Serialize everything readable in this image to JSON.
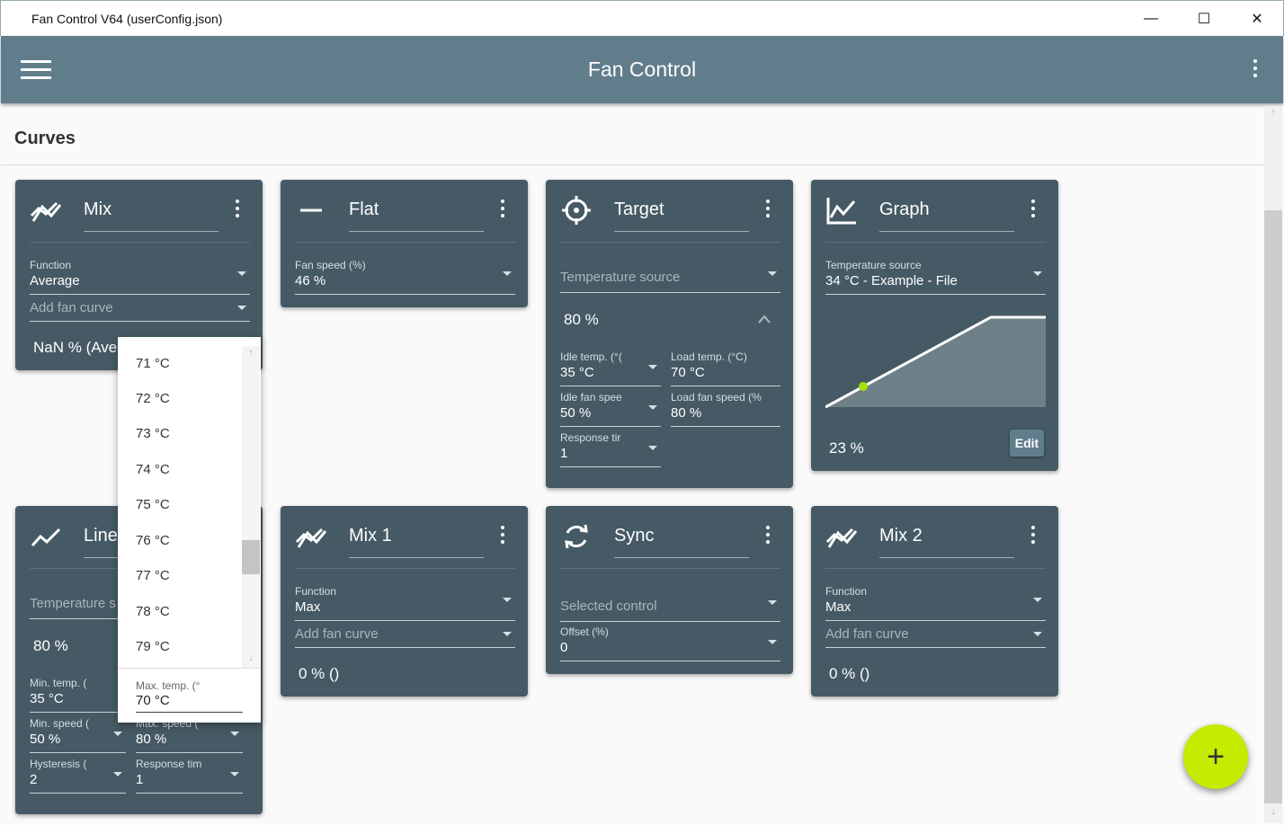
{
  "window": {
    "title": "Fan Control V64 (userConfig.json)",
    "minimize": "—",
    "maximize": "☐",
    "close": "✕"
  },
  "appbar": {
    "title": "Fan Control"
  },
  "section": {
    "title": "Curves"
  },
  "fab": {
    "label": "+"
  },
  "cards": {
    "mix": {
      "name": "Mix",
      "function_label": "Function",
      "function_value": "Average",
      "add_fan_curve": "Add fan curve",
      "output": "NaN % (Aver"
    },
    "flat": {
      "name": "Flat",
      "fan_speed_label": "Fan speed (%)",
      "fan_speed_value": "46 %"
    },
    "target": {
      "name": "Target",
      "temp_source": "Temperature source",
      "output": "80 %",
      "idle_temp_label": "Idle temp. (°(",
      "idle_temp_value": "35 °C",
      "load_temp_label": "Load temp. (°C)",
      "load_temp_value": "70 °C",
      "idle_fan_label": "Idle fan spee",
      "idle_fan_value": "50 %",
      "load_fan_label": "Load fan speed (%",
      "load_fan_value": "80 %",
      "response_label": "Response tir",
      "response_value": "1"
    },
    "graph": {
      "name": "Graph",
      "temp_source_label": "Temperature source",
      "temp_source_value": "34 °C - Example - File",
      "output": "23 %",
      "edit": "Edit"
    },
    "linear": {
      "name": "Line",
      "temp_source": "Temperature s",
      "output": "80 %",
      "min_temp_label": "Min. temp. (",
      "min_temp_value": "35 °C",
      "min_speed_label": "Min. speed (",
      "min_speed_value": "50 %",
      "max_speed_label": "Max. speed (",
      "max_speed_value": "80 %",
      "hysteresis_label": "Hysteresis (",
      "hysteresis_value": "2",
      "response_label": "Response tim",
      "response_value": "1"
    },
    "mix1": {
      "name": "Mix 1",
      "function_label": "Function",
      "function_value": "Max",
      "add_fan_curve": "Add fan curve",
      "output": "0 % ()"
    },
    "sync": {
      "name": "Sync",
      "selected_control": "Selected control",
      "offset_label": "Offset (%)",
      "offset_value": "0"
    },
    "mix2": {
      "name": "Mix 2",
      "function_label": "Function",
      "function_value": "Max",
      "add_fan_curve": "Add fan curve",
      "output": "0 % ()"
    }
  },
  "dropdown": {
    "options": [
      "71 °C",
      "72 °C",
      "73 °C",
      "74 °C",
      "75 °C",
      "76 °C",
      "77 °C",
      "78 °C",
      "79 °C"
    ],
    "footer_label": "Max. temp. (°",
    "footer_value": "70 °C"
  }
}
